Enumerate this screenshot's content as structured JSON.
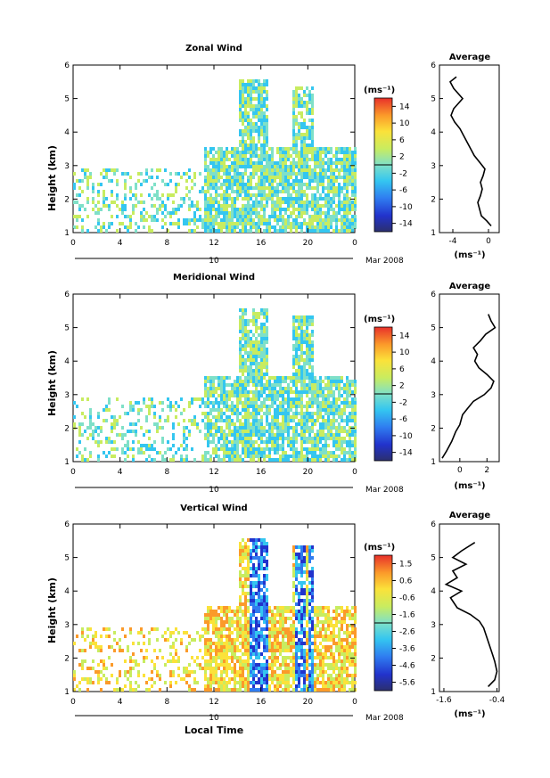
{
  "chart_data": [
    {
      "type": "heatmap",
      "title": "Zonal Wind",
      "ylabel": "Height (km)",
      "xlabel": "",
      "xticks": [
        "0",
        "4",
        "8",
        "12",
        "16",
        "20",
        "0"
      ],
      "xlim": [
        0,
        24
      ],
      "yticks": [
        "1",
        "2",
        "3",
        "4",
        "5",
        "6"
      ],
      "ylim": [
        1,
        6
      ],
      "date_label": "10",
      "date_suffix": "Mar 2008",
      "colorbar": {
        "unit": "(ms⁻¹)",
        "ticks": [
          "14",
          "10",
          "6",
          "2",
          "-2",
          "-6",
          "-10",
          "-14"
        ],
        "range": [
          -16,
          16
        ]
      },
      "average_profile": {
        "title": "Average",
        "xlabel": "(ms⁻¹)",
        "xticks": [
          "-4",
          "0"
        ],
        "xlim": [
          -5.5,
          1.2
        ],
        "ylim": [
          1,
          6
        ],
        "yticks": [
          "1",
          "2",
          "3",
          "4",
          "5",
          "6"
        ],
        "points": [
          [
            0.3,
            1.2
          ],
          [
            -0.2,
            1.35
          ],
          [
            -0.8,
            1.5
          ],
          [
            -1.0,
            1.7
          ],
          [
            -1.2,
            1.9
          ],
          [
            -0.9,
            2.1
          ],
          [
            -0.7,
            2.3
          ],
          [
            -0.9,
            2.5
          ],
          [
            -0.6,
            2.7
          ],
          [
            -0.4,
            2.9
          ],
          [
            -1.0,
            3.1
          ],
          [
            -1.6,
            3.3
          ],
          [
            -2.0,
            3.5
          ],
          [
            -2.4,
            3.7
          ],
          [
            -2.8,
            3.9
          ],
          [
            -3.2,
            4.1
          ],
          [
            -3.8,
            4.3
          ],
          [
            -4.2,
            4.5
          ],
          [
            -3.9,
            4.7
          ],
          [
            -2.9,
            5.0
          ],
          [
            -3.9,
            5.3
          ],
          [
            -4.3,
            5.5
          ],
          [
            -3.6,
            5.65
          ]
        ]
      }
    },
    {
      "type": "heatmap",
      "title": "Meridional Wind",
      "ylabel": "Height (km)",
      "xlabel": "",
      "xticks": [
        "0",
        "4",
        "8",
        "12",
        "16",
        "20",
        "0"
      ],
      "xlim": [
        0,
        24
      ],
      "yticks": [
        "1",
        "2",
        "3",
        "4",
        "5",
        "6"
      ],
      "ylim": [
        1,
        6
      ],
      "date_label": "10",
      "date_suffix": "Mar 2008",
      "colorbar": {
        "unit": "(ms⁻¹)",
        "ticks": [
          "14",
          "10",
          "6",
          "2",
          "-2",
          "-6",
          "-10",
          "-14"
        ],
        "range": [
          -16,
          16
        ]
      },
      "average_profile": {
        "title": "Average",
        "xlabel": "(ms⁻¹)",
        "xticks": [
          "0",
          "2"
        ],
        "xlim": [
          -1.5,
          2.9
        ],
        "ylim": [
          1,
          6
        ],
        "yticks": [
          "1",
          "2",
          "3",
          "4",
          "5",
          "6"
        ],
        "points": [
          [
            -1.3,
            1.1
          ],
          [
            -1.0,
            1.3
          ],
          [
            -0.6,
            1.6
          ],
          [
            -0.3,
            1.9
          ],
          [
            0.0,
            2.1
          ],
          [
            0.2,
            2.4
          ],
          [
            0.6,
            2.6
          ],
          [
            1.0,
            2.8
          ],
          [
            1.8,
            3.0
          ],
          [
            2.3,
            3.2
          ],
          [
            2.5,
            3.4
          ],
          [
            2.0,
            3.6
          ],
          [
            1.4,
            3.8
          ],
          [
            1.1,
            4.0
          ],
          [
            1.3,
            4.2
          ],
          [
            1.0,
            4.4
          ],
          [
            1.5,
            4.6
          ],
          [
            1.9,
            4.8
          ],
          [
            2.6,
            5.0
          ],
          [
            2.3,
            5.2
          ],
          [
            2.1,
            5.4
          ]
        ]
      }
    },
    {
      "type": "heatmap",
      "title": "Vertical Wind",
      "ylabel": "Height (km)",
      "xlabel": "Local Time",
      "xticks": [
        "0",
        "4",
        "8",
        "12",
        "16",
        "20",
        "0"
      ],
      "xlim": [
        0,
        24
      ],
      "yticks": [
        "1",
        "2",
        "3",
        "4",
        "5",
        "6"
      ],
      "ylim": [
        1,
        6
      ],
      "date_label": "10",
      "date_suffix": "Mar 2008",
      "colorbar": {
        "unit": "(ms⁻¹)",
        "ticks": [
          "1.5",
          "0.6",
          "-0.6",
          "-1.6",
          "-2.6",
          "-3.6",
          "-4.6",
          "-5.6"
        ],
        "range": [
          -6,
          2
        ]
      },
      "average_profile": {
        "title": "Average",
        "xlabel": "(ms⁻¹)",
        "xticks": [
          "-1.6",
          "-0.4"
        ],
        "xlim": [
          -1.7,
          -0.35
        ],
        "ylim": [
          1,
          6
        ],
        "yticks": [
          "1",
          "2",
          "3",
          "4",
          "5",
          "6"
        ],
        "points": [
          [
            -0.6,
            1.15
          ],
          [
            -0.45,
            1.35
          ],
          [
            -0.4,
            1.6
          ],
          [
            -0.45,
            1.9
          ],
          [
            -0.5,
            2.1
          ],
          [
            -0.55,
            2.3
          ],
          [
            -0.6,
            2.5
          ],
          [
            -0.65,
            2.7
          ],
          [
            -0.7,
            2.9
          ],
          [
            -0.8,
            3.1
          ],
          [
            -1.0,
            3.3
          ],
          [
            -1.3,
            3.5
          ],
          [
            -1.45,
            3.8
          ],
          [
            -1.2,
            4.0
          ],
          [
            -1.55,
            4.2
          ],
          [
            -1.3,
            4.4
          ],
          [
            -1.4,
            4.6
          ],
          [
            -1.1,
            4.8
          ],
          [
            -1.4,
            5.0
          ],
          [
            -1.2,
            5.2
          ],
          [
            -0.9,
            5.45
          ]
        ]
      }
    }
  ]
}
